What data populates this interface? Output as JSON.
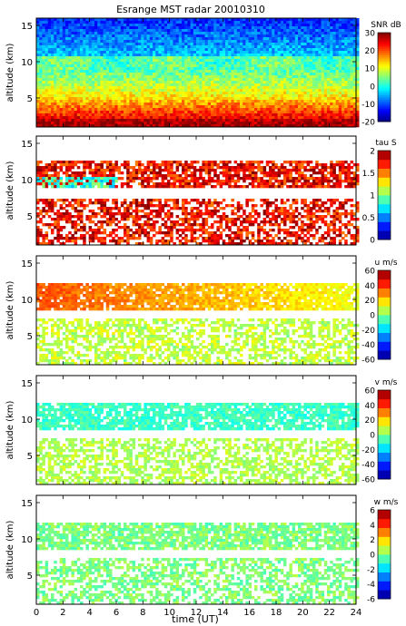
{
  "chart_data": [
    {
      "type": "heatmap",
      "title": "Esrange MST radar 20010310",
      "xlabel": "",
      "ylabel": "altitude (km)",
      "xlim": [
        0,
        24
      ],
      "ylim": [
        1,
        16
      ],
      "xticks": [
        0,
        2,
        4,
        6,
        8,
        10,
        12,
        14,
        16,
        18,
        20,
        22,
        24
      ],
      "yticks": [
        5,
        10,
        15
      ],
      "colorbar": {
        "label": "SNR dB",
        "min": -20,
        "max": 30,
        "ticks": [
          -20,
          -10,
          0,
          10,
          20,
          30
        ]
      },
      "colors": {
        "low": "#0000c8",
        "mid": "#7fff7f",
        "high": "#8b0000"
      },
      "summary": [
        {
          "altitude_km": 2,
          "value": 28
        },
        {
          "altitude_km": 4,
          "value": 20
        },
        {
          "altitude_km": 6,
          "value": 12
        },
        {
          "altitude_km": 8,
          "value": 5
        },
        {
          "altitude_km": 10,
          "value": 2
        },
        {
          "altitude_km": 12,
          "value": -5
        },
        {
          "altitude_km": 14,
          "value": -10
        },
        {
          "altitude_km": 16,
          "value": -12
        }
      ]
    },
    {
      "type": "heatmap",
      "title": "",
      "xlabel": "",
      "ylabel": "altitude (km)",
      "xlim": [
        0,
        24
      ],
      "ylim": [
        1,
        16
      ],
      "xticks": [
        0,
        2,
        4,
        6,
        8,
        10,
        12,
        14,
        16,
        18,
        20,
        22,
        24
      ],
      "yticks": [
        5,
        10,
        15
      ],
      "colorbar": {
        "label": "tau S",
        "min": 0,
        "max": 2,
        "ticks": [
          0,
          0.5,
          1,
          1.5,
          2
        ]
      },
      "colors": {
        "dominant": "#8b0000"
      },
      "summary": [
        {
          "altitude_km": 3,
          "value": 1.9
        },
        {
          "altitude_km": 6,
          "value": 1.8
        },
        {
          "altitude_km": 9.5,
          "value": 0.8
        },
        {
          "altitude_km": 11,
          "value": 1.9
        }
      ]
    },
    {
      "type": "heatmap",
      "title": "",
      "xlabel": "",
      "ylabel": "altitude (km)",
      "xlim": [
        0,
        24
      ],
      "ylim": [
        1,
        16
      ],
      "xticks": [
        0,
        2,
        4,
        6,
        8,
        10,
        12,
        14,
        16,
        18,
        20,
        22,
        24
      ],
      "yticks": [
        5,
        10,
        15
      ],
      "colorbar": {
        "label": "u m/s",
        "min": -60,
        "max": 60,
        "ticks": [
          -60,
          -40,
          -20,
          0,
          20,
          40,
          60
        ]
      },
      "summary": [
        {
          "altitude_km": 3,
          "value": 5
        },
        {
          "altitude_km": 6,
          "value": 10
        },
        {
          "altitude_km": 10.5,
          "value": 30
        }
      ]
    },
    {
      "type": "heatmap",
      "title": "",
      "xlabel": "",
      "ylabel": "altitude (km)",
      "xlim": [
        0,
        24
      ],
      "ylim": [
        1,
        16
      ],
      "xticks": [
        0,
        2,
        4,
        6,
        8,
        10,
        12,
        14,
        16,
        18,
        20,
        22,
        24
      ],
      "yticks": [
        5,
        10,
        15
      ],
      "colorbar": {
        "label": "v m/s",
        "min": -60,
        "max": 60,
        "ticks": [
          -60,
          -40,
          -20,
          0,
          20,
          40,
          60
        ]
      },
      "summary": [
        {
          "altitude_km": 3,
          "value": 5
        },
        {
          "altitude_km": 6,
          "value": 8
        },
        {
          "altitude_km": 10.5,
          "value": -8
        }
      ]
    },
    {
      "type": "heatmap",
      "title": "",
      "xlabel": "time (UT)",
      "ylabel": "altitude (km)",
      "xlim": [
        0,
        24
      ],
      "ylim": [
        1,
        16
      ],
      "xticks": [
        0,
        2,
        4,
        6,
        8,
        10,
        12,
        14,
        16,
        18,
        20,
        22,
        24
      ],
      "yticks": [
        5,
        10,
        15
      ],
      "colorbar": {
        "label": "w m/s",
        "min": -6,
        "max": 6,
        "ticks": [
          -6,
          -4,
          -2,
          0,
          2,
          4,
          6
        ]
      },
      "summary": [
        {
          "altitude_km": 3,
          "value": 0
        },
        {
          "altitude_km": 10.5,
          "value": 0
        }
      ]
    }
  ]
}
